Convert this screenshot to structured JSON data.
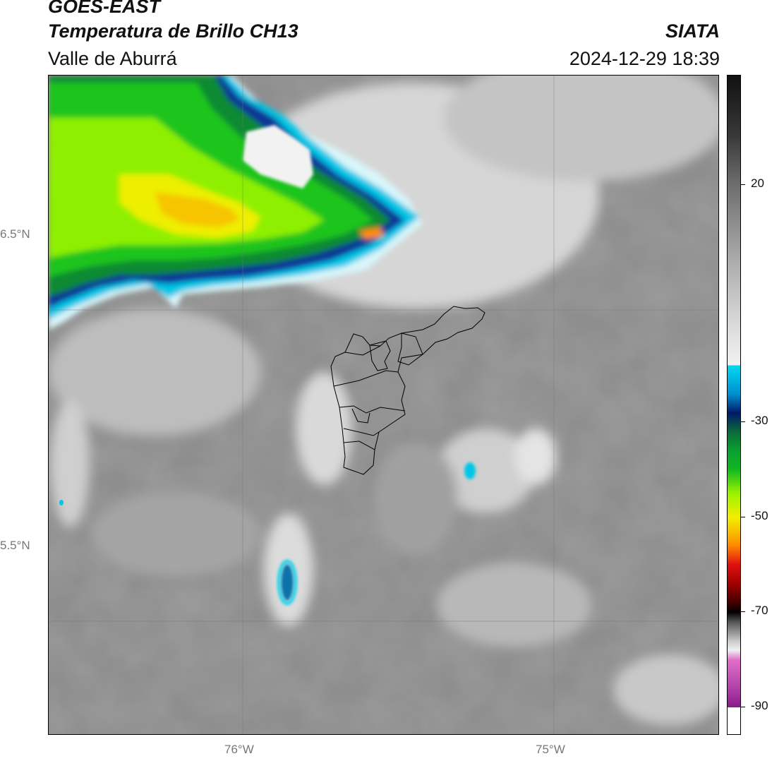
{
  "header": {
    "satellite": "GOES-EAST",
    "product": "Temperatura de Brillo CH13",
    "region": "Valle de Aburrá",
    "agency": "SIATA",
    "datetime": "2024-12-29 18:39"
  },
  "map": {
    "lat_labels": [
      "6.5°N",
      "5.5°N"
    ],
    "lon_labels": [
      "76°W",
      "75°W"
    ],
    "lat_values": [
      6.5,
      5.5
    ],
    "lon_values": [
      -76.0,
      -75.0
    ],
    "lon_range": [
      -76.62,
      -74.47
    ],
    "lat_range": [
      5.12,
      7.25
    ]
  },
  "colorbar": {
    "ticks": [
      {
        "label": "20",
        "value": 20
      },
      {
        "label": "-30",
        "value": -30
      },
      {
        "label": "-50",
        "value": -50
      },
      {
        "label": "-70",
        "value": -70
      },
      {
        "label": "-90",
        "value": -90
      }
    ],
    "colors": {
      "warm_top": "#111111",
      "gray_mid": "#8c8c8c",
      "white": "#f2f2f2",
      "cyan": "#00d8ee",
      "blue": "#0a3a9e",
      "navy": "#001a66",
      "green": "#10b820",
      "lime": "#9cf200",
      "yellow": "#f4ee00",
      "orange": "#ff8800",
      "red": "#e01010",
      "dark_red": "#400000",
      "pink": "#e070c8",
      "purple": "#8a1a8a"
    }
  }
}
